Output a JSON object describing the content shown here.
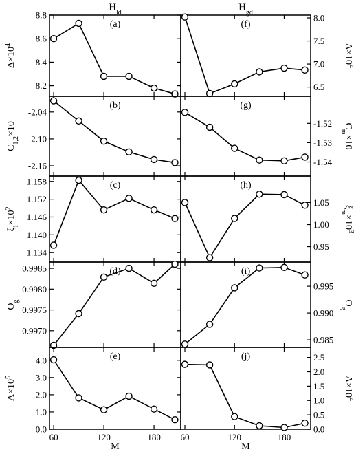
{
  "columns": [
    {
      "base": "H",
      "sub": "ld"
    },
    {
      "base": "H",
      "sub": "gd"
    }
  ],
  "x_axis_label": "M",
  "chart_data": [
    {
      "panel": "(a)",
      "type": "line",
      "ylabel": {
        "base": "Δ×10",
        "sup": "4"
      },
      "x": [
        60,
        90,
        120,
        150,
        180,
        205
      ],
      "values": [
        8.6,
        8.73,
        8.28,
        8.28,
        8.18,
        8.13
      ],
      "ylim": [
        8.11,
        8.8
      ],
      "yticks": [
        8.2,
        8.4,
        8.6,
        8.8
      ],
      "ytick_labels": [
        "8.2",
        "8.4",
        "8.6",
        "8.8"
      ],
      "xlim": [
        55,
        212
      ],
      "xticks": [
        60,
        120,
        180
      ],
      "xtick_labels": [
        "60",
        "120",
        "180"
      ]
    },
    {
      "panel": "(b)",
      "type": "line",
      "ylabel": {
        "base": "C",
        "sub": "1,2",
        "tail": "×10"
      },
      "x": [
        60,
        90,
        120,
        150,
        180,
        205
      ],
      "values": [
        -2.015,
        -2.06,
        -2.105,
        -2.129,
        -2.146,
        -2.153
      ],
      "ylim": [
        -2.183,
        -2.005
      ],
      "yticks": [
        -2.04,
        -2.1,
        -2.16
      ],
      "ytick_labels": [
        "-2.04",
        "-2.10",
        "-2.16"
      ],
      "xlim": [
        55,
        212
      ],
      "xticks": [
        60,
        120,
        180
      ],
      "xtick_labels": [
        "60",
        "120",
        "180"
      ]
    },
    {
      "panel": "(c)",
      "type": "line",
      "ylabel": {
        "base": "ξ",
        "sub": "l",
        "tail": "×10",
        "sup": "2"
      },
      "x": [
        60,
        90,
        120,
        150,
        180,
        205
      ],
      "values": [
        1.1365,
        1.1584,
        1.1484,
        1.1523,
        1.1484,
        1.1455
      ],
      "ylim": [
        1.1308,
        1.1598
      ],
      "yticks": [
        1.134,
        1.14,
        1.146,
        1.152,
        1.158
      ],
      "ytick_labels": [
        "1.134",
        "1.140",
        "1.146",
        "1.152",
        "1.158"
      ],
      "xlim": [
        55,
        212
      ],
      "xticks": [
        60,
        120,
        180
      ],
      "xtick_labels": [
        "60",
        "120",
        "180"
      ]
    },
    {
      "panel": "(d)",
      "type": "line",
      "ylabel": {
        "base": "O",
        "sub": "g"
      },
      "x": [
        60,
        90,
        120,
        150,
        180,
        205
      ],
      "values": [
        0.99665,
        0.99741,
        0.99829,
        0.9985,
        0.99814,
        0.9986
      ],
      "ylim": [
        0.9966,
        0.99865
      ],
      "yticks": [
        0.997,
        0.9975,
        0.998,
        0.9985
      ],
      "ytick_labels": [
        "0.9970",
        "0.9975",
        "0.9980",
        "0.9985"
      ],
      "xlim": [
        55,
        212
      ],
      "xticks": [
        60,
        120,
        180
      ],
      "xtick_labels": [
        "60",
        "120",
        "180"
      ]
    },
    {
      "panel": "(e)",
      "type": "line",
      "ylabel": {
        "base": "Λ×10",
        "sup": "5"
      },
      "x": [
        60,
        90,
        120,
        150,
        180,
        205
      ],
      "values": [
        4.03,
        1.82,
        1.13,
        1.92,
        1.17,
        0.55
      ],
      "ylim": [
        0.0,
        4.75
      ],
      "yticks": [
        0.0,
        1.0,
        2.0,
        3.0,
        4.0
      ],
      "ytick_labels": [
        "0.0",
        "1.0",
        "2.0",
        "3.0",
        "4.0"
      ],
      "xlim": [
        55,
        212
      ],
      "xticks": [
        60,
        120,
        180
      ],
      "xtick_labels": [
        "60",
        "120",
        "180"
      ]
    },
    {
      "panel": "(f)",
      "type": "line",
      "ylabel": {
        "base": "Δ×10",
        "sup": "4"
      },
      "x": [
        60,
        90,
        120,
        150,
        180,
        205
      ],
      "values": [
        8.02,
        6.36,
        6.57,
        6.83,
        6.91,
        6.87
      ],
      "ylim": [
        6.3,
        8.06
      ],
      "yticks": [
        6.5,
        7.0,
        7.5,
        8.0
      ],
      "ytick_labels": [
        "6.5",
        "7.0",
        "7.5",
        "8.0"
      ],
      "xlim": [
        55,
        212
      ],
      "xticks": [
        60,
        120,
        180
      ],
      "xtick_labels": [
        "60",
        "120",
        "180"
      ]
    },
    {
      "panel": "(g)",
      "type": "line",
      "ylabel": {
        "base": "C",
        "sub": "m",
        "tail": "×10"
      },
      "x": [
        60,
        90,
        120,
        150,
        180,
        205
      ],
      "values": [
        -1.5143,
        -1.522,
        -1.5329,
        -1.539,
        -1.5394,
        -1.5375
      ],
      "ylim": [
        -1.5473,
        -1.506
      ],
      "yticks": [
        -1.52,
        -1.53,
        -1.54
      ],
      "ytick_labels": [
        "-1.52",
        "-1.53",
        "-1.54"
      ],
      "xlim": [
        55,
        212
      ],
      "xticks": [
        60,
        120,
        180
      ],
      "xtick_labels": [
        "60",
        "120",
        "180"
      ]
    },
    {
      "panel": "(h)",
      "type": "line",
      "ylabel": {
        "base": "ξ",
        "sub": "m",
        "tail": "×10",
        "sup": "3"
      },
      "x": [
        60,
        90,
        120,
        150,
        180,
        205
      ],
      "values": [
        1.05,
        0.925,
        1.014,
        1.069,
        1.068,
        1.044
      ],
      "ylim": [
        0.915,
        1.11
      ],
      "yticks": [
        0.95,
        1.0,
        1.05
      ],
      "ytick_labels": [
        "0.95",
        "1.00",
        "1.05"
      ],
      "xlim": [
        55,
        212
      ],
      "xticks": [
        60,
        120,
        180
      ],
      "xtick_labels": [
        "60",
        "120",
        "180"
      ]
    },
    {
      "panel": "(i)",
      "type": "line",
      "ylabel": {
        "base": "O",
        "sub": "g"
      },
      "x": [
        60,
        90,
        120,
        150,
        180,
        205
      ],
      "values": [
        0.9842,
        0.9879,
        0.9947,
        0.9984,
        0.9985,
        0.9971
      ],
      "ylim": [
        0.9836,
        0.9995
      ],
      "yticks": [
        0.985,
        0.99,
        0.995
      ],
      "ytick_labels": [
        "0.985",
        "0.990",
        "0.995"
      ],
      "xlim": [
        55,
        212
      ],
      "xticks": [
        60,
        120,
        180
      ],
      "xtick_labels": [
        "60",
        "120",
        "180"
      ]
    },
    {
      "panel": "(j)",
      "type": "line",
      "ylabel": {
        "base": "Λ×10",
        "sup": "4"
      },
      "x": [
        60,
        90,
        120,
        150,
        180,
        205
      ],
      "values": [
        2.26,
        2.24,
        0.44,
        0.12,
        0.06,
        0.21
      ],
      "ylim": [
        0.0,
        2.85
      ],
      "yticks": [
        0.0,
        0.5,
        1.0,
        1.5,
        2.0,
        2.5
      ],
      "ytick_labels": [
        "0.0",
        "0.5",
        "1.0",
        "1.5",
        "2.0",
        "2.5"
      ],
      "xlim": [
        55,
        212
      ],
      "xticks": [
        60,
        120,
        180
      ],
      "xtick_labels": [
        "60",
        "120",
        "180"
      ]
    }
  ]
}
